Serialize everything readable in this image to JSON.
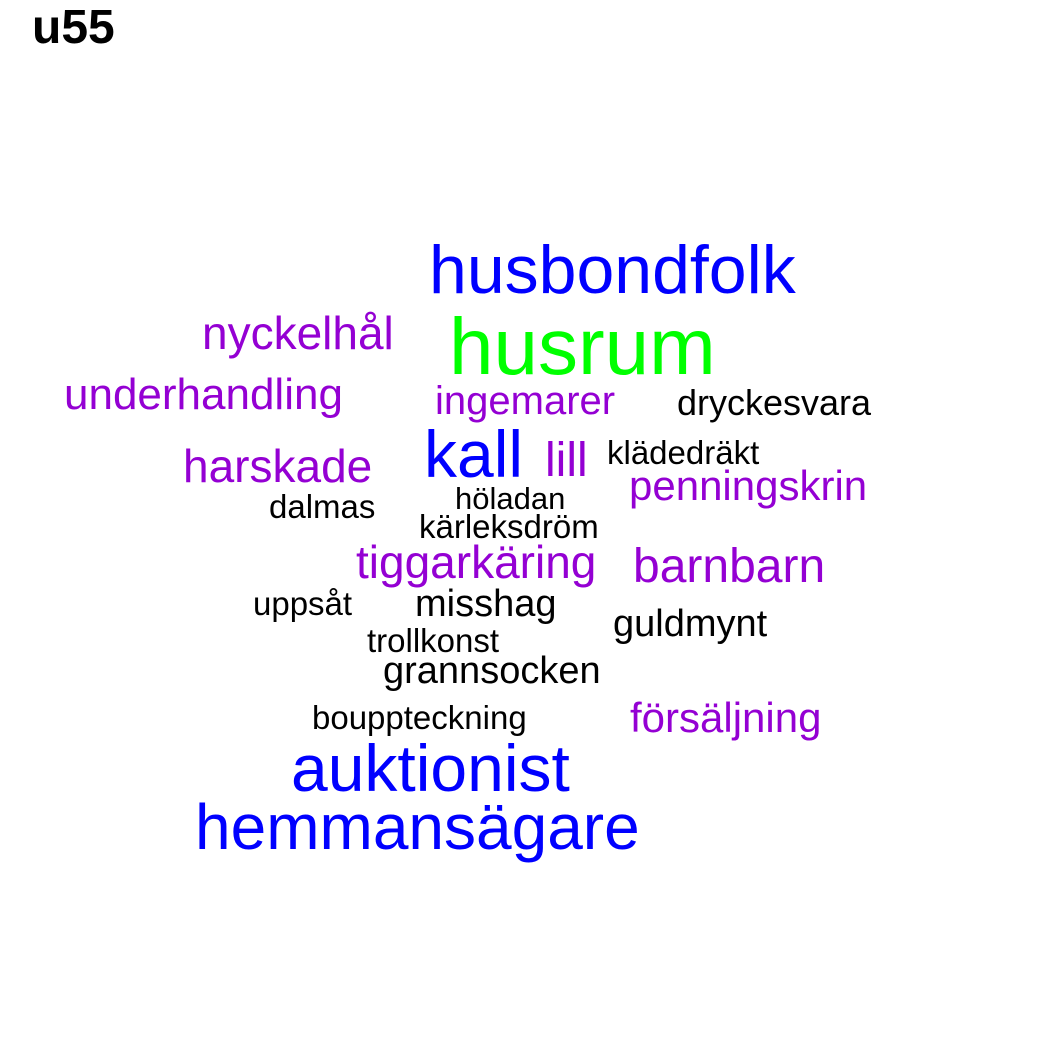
{
  "title": "u55",
  "colors": {
    "blue": "#0000ff",
    "green": "#00ff00",
    "purple": "#9400d3",
    "black": "#000000"
  },
  "words": [
    {
      "text": "husbondfolk",
      "color": "blue"
    },
    {
      "text": "husrum",
      "color": "green"
    },
    {
      "text": "nyckelhål",
      "color": "purple"
    },
    {
      "text": "underhandling",
      "color": "purple"
    },
    {
      "text": "ingemarer",
      "color": "purple"
    },
    {
      "text": "dryckesvara",
      "color": "black"
    },
    {
      "text": "harskade",
      "color": "purple"
    },
    {
      "text": "kall",
      "color": "blue"
    },
    {
      "text": "lill",
      "color": "purple"
    },
    {
      "text": "klädedräkt",
      "color": "black"
    },
    {
      "text": "penningskrin",
      "color": "purple"
    },
    {
      "text": "dalmas",
      "color": "black"
    },
    {
      "text": "höladan",
      "color": "black"
    },
    {
      "text": "kärleksdröm",
      "color": "black"
    },
    {
      "text": "tiggarkäring",
      "color": "purple"
    },
    {
      "text": "barnbarn",
      "color": "purple"
    },
    {
      "text": "uppsåt",
      "color": "black"
    },
    {
      "text": "misshag",
      "color": "black"
    },
    {
      "text": "guldmynt",
      "color": "black"
    },
    {
      "text": "trollkonst",
      "color": "black"
    },
    {
      "text": "grannsocken",
      "color": "black"
    },
    {
      "text": "bouppteckning",
      "color": "black"
    },
    {
      "text": "försäljning",
      "color": "purple"
    },
    {
      "text": "auktionist",
      "color": "blue"
    },
    {
      "text": "hemmansägare",
      "color": "blue"
    }
  ]
}
